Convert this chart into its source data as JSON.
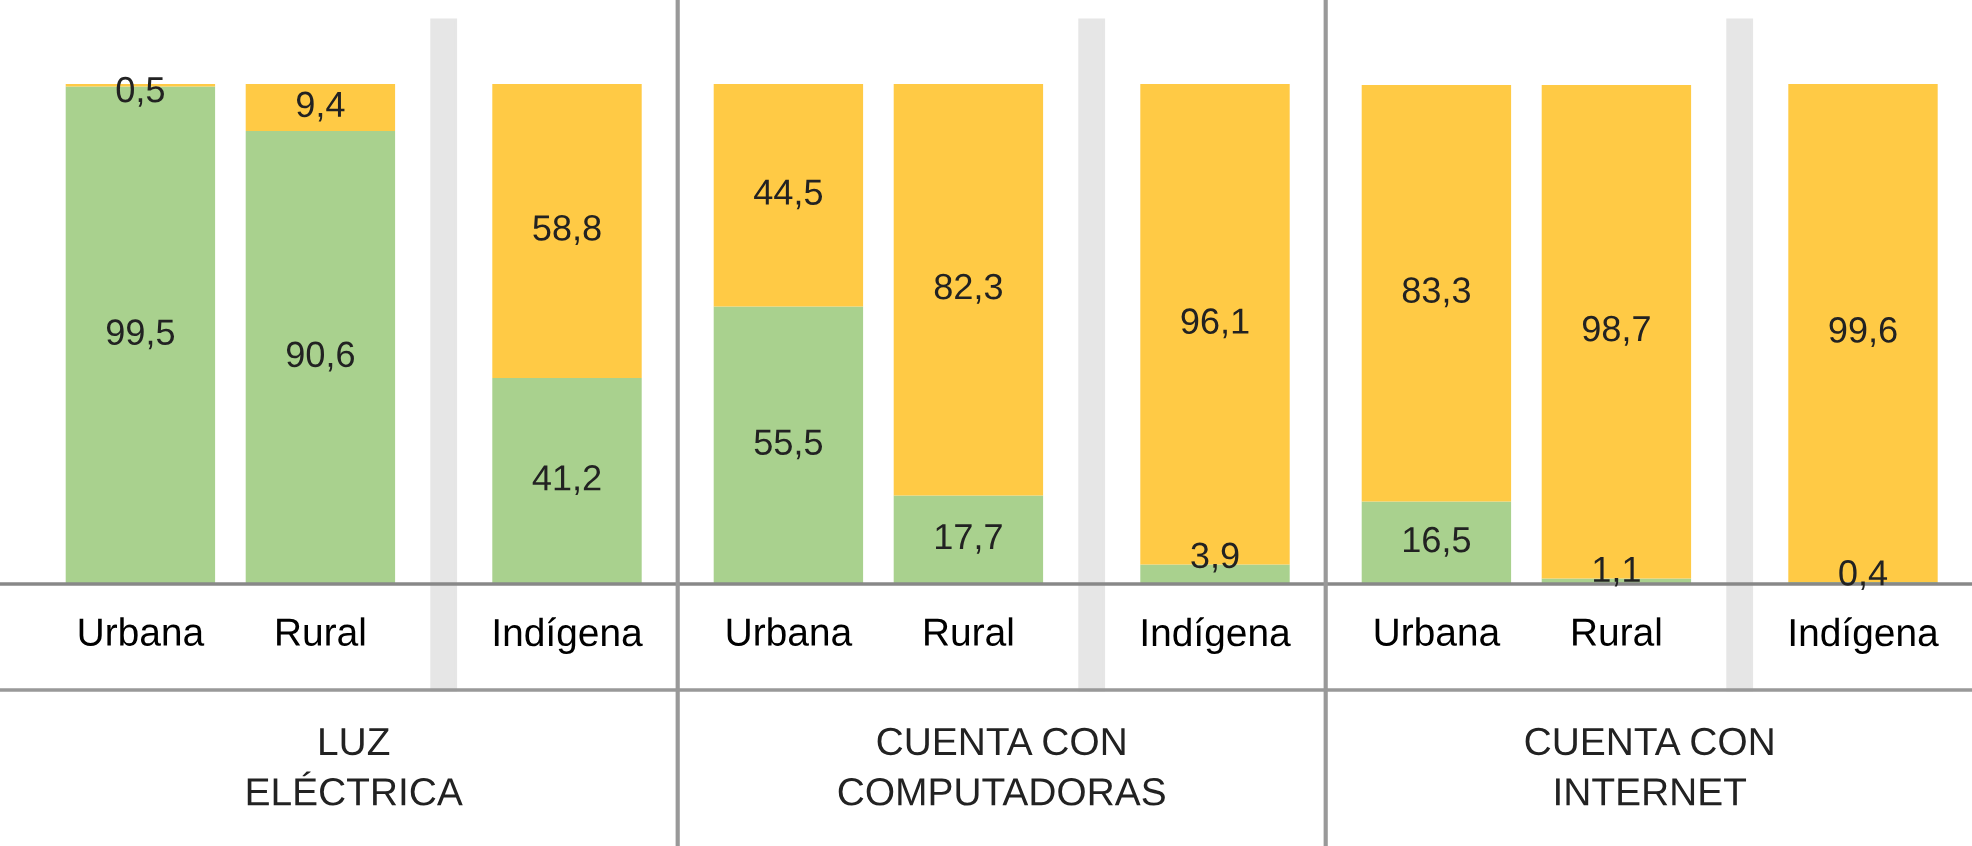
{
  "chart_data": {
    "type": "bar",
    "stacked": true,
    "categories": [
      "Urbana",
      "Rural",
      "Indígena",
      "Urbana",
      "Rural",
      "Indígena",
      "Urbana",
      "Rural",
      "Indígena"
    ],
    "series": [
      {
        "color": "#a9d18e",
        "values": [
          99.5,
          90.6,
          41.2,
          55.5,
          17.7,
          3.9,
          16.5,
          1.1,
          0.4
        ],
        "value_labels": [
          "99,5",
          "90,6",
          "41,2",
          "55,5",
          "17,7",
          "3,9",
          "16,5",
          "1,1",
          "0,4"
        ]
      },
      {
        "color": "#ffca45",
        "values": [
          0.5,
          9.4,
          58.8,
          44.5,
          82.3,
          96.1,
          83.3,
          98.7,
          99.6
        ],
        "value_labels": [
          "0,5",
          "9,4",
          "58,8",
          "44,5",
          "82,3",
          "96,1",
          "83,3",
          "98,7",
          "99,6"
        ]
      }
    ],
    "annotations": [
      "LUZ\nELÉCTRICA",
      "CUENTA CON\nCOMPUTADORAS",
      "CUENTA CON\nINTERNET"
    ]
  }
}
